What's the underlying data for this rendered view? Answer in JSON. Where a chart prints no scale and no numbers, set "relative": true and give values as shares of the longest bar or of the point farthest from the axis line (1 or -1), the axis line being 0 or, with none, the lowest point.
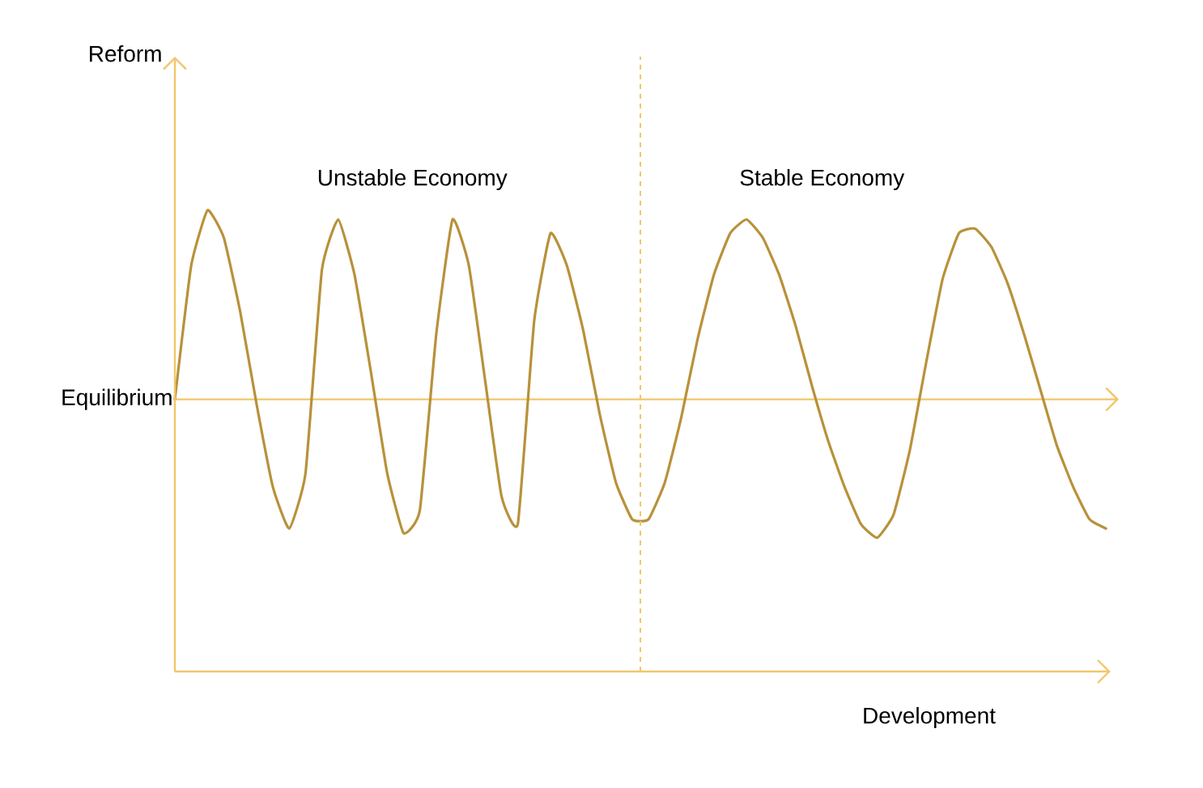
{
  "chart_data": {
    "type": "line",
    "relative": true,
    "xlabel": "Development",
    "categories": [
      null,
      null,
      null,
      null,
      null,
      null,
      null,
      null,
      null,
      null,
      null,
      null,
      null,
      null,
      null,
      null,
      null,
      null,
      null,
      null,
      null,
      null,
      null,
      null,
      null,
      null,
      null,
      null,
      null,
      null,
      null,
      null,
      null,
      null,
      null,
      null,
      null,
      null,
      null,
      null,
      null,
      null,
      null,
      null,
      null,
      null,
      null,
      null,
      null,
      null,
      null,
      null,
      null,
      null,
      null,
      null,
      null,
      null
    ],
    "series": [
      {
        "color": "#b8913a",
        "values": [
          0.59,
          0.88,
          1.0,
          0.94,
          0.78,
          0.58,
          0.4,
          0.31,
          0.43,
          0.87,
          0.98,
          0.86,
          0.65,
          0.43,
          0.3,
          0.35,
          0.73,
          0.98,
          0.88,
          0.63,
          0.38,
          0.32,
          0.76,
          0.95,
          0.88,
          0.74,
          0.56,
          0.41,
          0.33,
          0.33,
          0.41,
          0.55,
          0.72,
          0.86,
          0.95,
          0.98,
          0.94,
          0.86,
          0.75,
          0.62,
          0.5,
          0.4,
          0.32,
          0.29,
          0.34,
          0.48,
          0.67,
          0.85,
          0.95,
          0.96,
          0.92,
          0.84,
          0.73,
          0.61,
          0.49,
          0.4,
          0.33,
          0.31
        ]
      }
    ],
    "ref_lines": [
      {
        "axis": "y",
        "value": 0.59,
        "label": "Equilibrium",
        "color": "#f2c66a"
      }
    ],
    "annotations": [
      "Unstable Economy",
      "Stable Economy",
      "Reform"
    ]
  }
}
